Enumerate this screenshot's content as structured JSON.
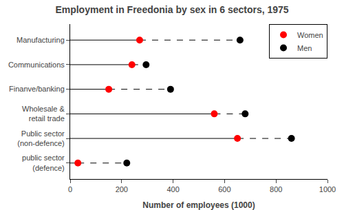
{
  "chart_data": {
    "type": "dot",
    "title": "Employment in Freedonia by sex in 6 sectors, 1975",
    "xlabel": "Number of employees (1000)",
    "categories": [
      "Manufacturing",
      "Communications",
      "Finanve/banking",
      "Wholesale &\nretail trade",
      "Public sector\n(non-defence)",
      "public sector\n(defence)"
    ],
    "series": [
      {
        "name": "Women",
        "color": "#ff0000",
        "values": [
          270,
          240,
          150,
          560,
          650,
          30
        ]
      },
      {
        "name": "Men",
        "color": "#000000",
        "values": [
          660,
          295,
          390,
          680,
          860,
          220
        ]
      }
    ],
    "xlim": [
      0,
      1000
    ],
    "xticks": [
      0,
      200,
      400,
      600,
      800,
      1000
    ],
    "orientation": "horizontal",
    "grid": false,
    "legend": "upper right"
  }
}
